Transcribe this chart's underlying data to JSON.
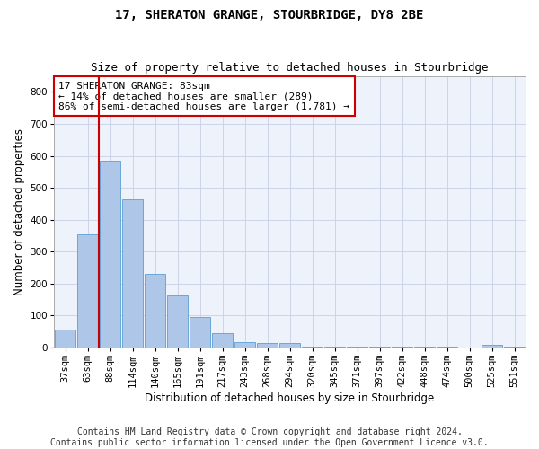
{
  "title": "17, SHERATON GRANGE, STOURBRIDGE, DY8 2BE",
  "subtitle": "Size of property relative to detached houses in Stourbridge",
  "xlabel": "Distribution of detached houses by size in Stourbridge",
  "ylabel": "Number of detached properties",
  "footer_line1": "Contains HM Land Registry data © Crown copyright and database right 2024.",
  "footer_line2": "Contains public sector information licensed under the Open Government Licence v3.0.",
  "categories": [
    "37sqm",
    "63sqm",
    "88sqm",
    "114sqm",
    "140sqm",
    "165sqm",
    "191sqm",
    "217sqm",
    "243sqm",
    "268sqm",
    "294sqm",
    "320sqm",
    "345sqm",
    "371sqm",
    "397sqm",
    "422sqm",
    "448sqm",
    "474sqm",
    "500sqm",
    "525sqm",
    "551sqm"
  ],
  "values": [
    57,
    355,
    585,
    465,
    230,
    163,
    95,
    44,
    18,
    15,
    13,
    4,
    4,
    4,
    4,
    4,
    4,
    4,
    0,
    8,
    4
  ],
  "bar_color": "#aec6e8",
  "bar_edge_color": "#5a9fd4",
  "red_line_x": 1.5,
  "red_line_color": "#cc0000",
  "annotation_text": "17 SHERATON GRANGE: 83sqm\n← 14% of detached houses are smaller (289)\n86% of semi-detached houses are larger (1,781) →",
  "annotation_box_color": "#ffffff",
  "annotation_box_edge_color": "#cc0000",
  "ylim": [
    0,
    850
  ],
  "yticks": [
    0,
    100,
    200,
    300,
    400,
    500,
    600,
    700,
    800
  ],
  "background_color": "#ffffff",
  "plot_bg_color": "#eef2fa",
  "grid_color": "#c8d0e8",
  "title_fontsize": 10,
  "subtitle_fontsize": 9,
  "xlabel_fontsize": 8.5,
  "ylabel_fontsize": 8.5,
  "tick_fontsize": 7.5,
  "footer_fontsize": 7,
  "annot_fontsize": 8
}
